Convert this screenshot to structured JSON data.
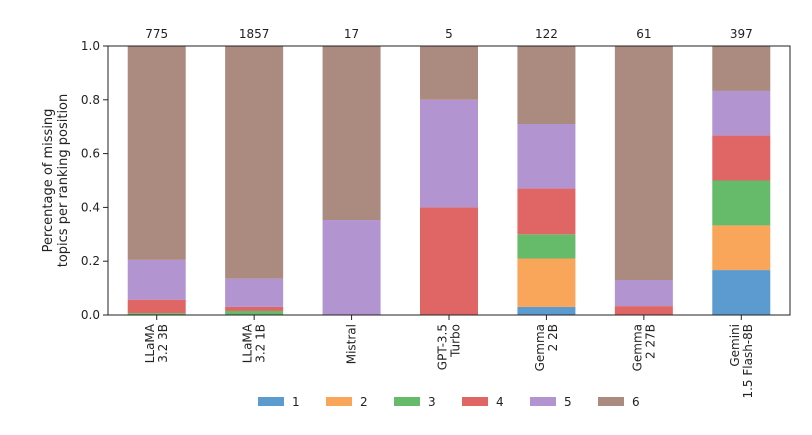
{
  "chart_data": {
    "type": "bar",
    "stacked": true,
    "title": "",
    "xlabel": "",
    "ylabel": [
      "Percentage of missing",
      "topics per ranking position"
    ],
    "ylim": [
      0,
      1.0
    ],
    "yticks": [
      "0.0",
      "0.2",
      "0.4",
      "0.6",
      "0.8",
      "1.0"
    ],
    "grid": false,
    "legend_position": "bottom",
    "categories": [
      [
        "LLaMA",
        "3.2 3B"
      ],
      [
        "LLaMA",
        "3.2 1B"
      ],
      [
        "Mistral"
      ],
      [
        "GPT-3.5",
        "Turbo"
      ],
      [
        "Gemma",
        "2 2B"
      ],
      [
        "Gemma",
        "2 27B"
      ],
      [
        "Gemini",
        "1.5 Flash-8B"
      ]
    ],
    "counts": [
      "775",
      "1857",
      "17",
      "5",
      "122",
      "61",
      "397"
    ],
    "series": [
      {
        "name": "1",
        "color": "#5b9bd0",
        "values": [
          0.0,
          0.0,
          0.0,
          0.0,
          0.03,
          0.0,
          0.167
        ]
      },
      {
        "name": "2",
        "color": "#f9a65a",
        "values": [
          0.0,
          0.0,
          0.0,
          0.0,
          0.18,
          0.0,
          0.166
        ]
      },
      {
        "name": "3",
        "color": "#66bb6a",
        "values": [
          0.007,
          0.015,
          0.0,
          0.0,
          0.09,
          0.0,
          0.167
        ]
      },
      {
        "name": "4",
        "color": "#e06666",
        "values": [
          0.05,
          0.015,
          0.0,
          0.4,
          0.17,
          0.033,
          0.167
        ]
      },
      {
        "name": "5",
        "color": "#b294d0",
        "values": [
          0.148,
          0.105,
          0.353,
          0.4,
          0.24,
          0.097,
          0.166
        ]
      },
      {
        "name": "6",
        "color": "#ab8a7f",
        "values": [
          0.795,
          0.865,
          0.647,
          0.2,
          0.29,
          0.87,
          0.167
        ]
      }
    ]
  }
}
